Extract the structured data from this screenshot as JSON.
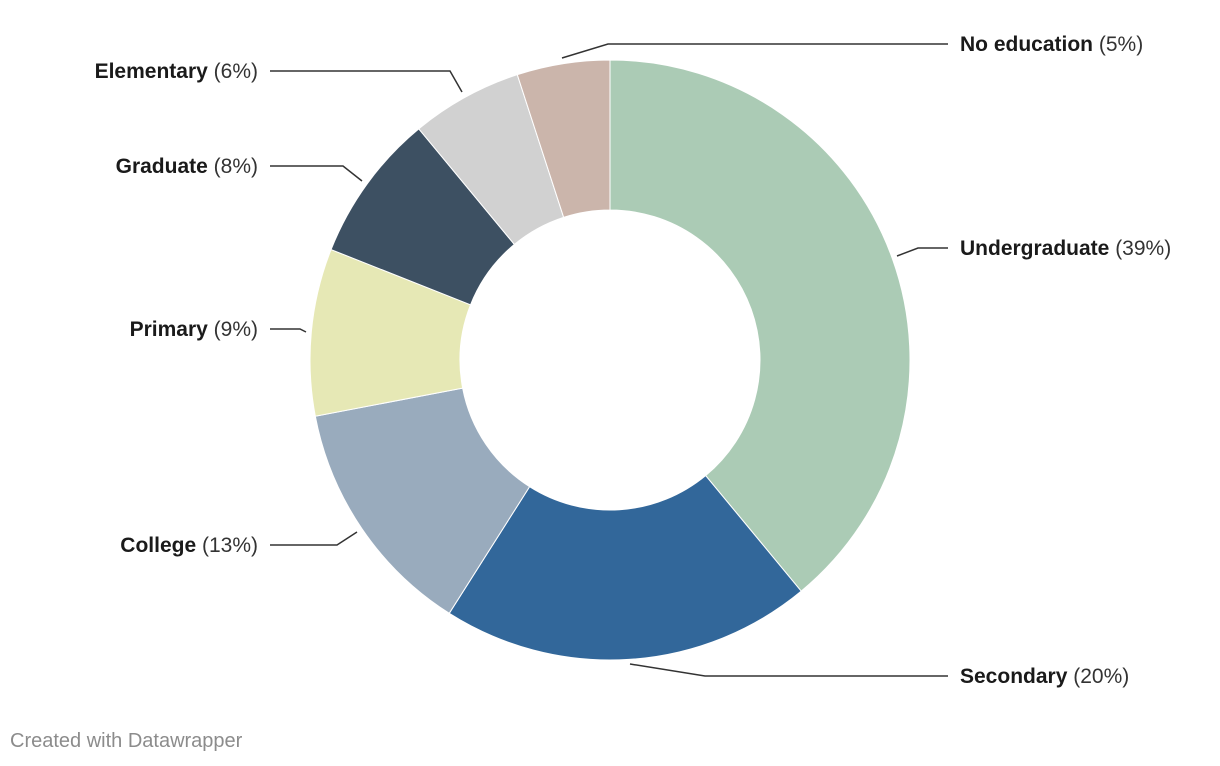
{
  "chart_data": {
    "type": "pie",
    "title": "",
    "style": "donut",
    "legend": "none",
    "slices": [
      {
        "label": "Undergraduate",
        "value": 39,
        "value_text": "(39%)",
        "color": "#abcbb5"
      },
      {
        "label": "Secondary",
        "value": 20,
        "value_text": "(20%)",
        "color": "#32679a"
      },
      {
        "label": "College",
        "value": 13,
        "value_text": "(13%)",
        "color": "#99abbd"
      },
      {
        "label": "Primary",
        "value": 9,
        "value_text": "(9%)",
        "color": "#e6e8b5"
      },
      {
        "label": "Graduate",
        "value": 8,
        "value_text": "(8%)",
        "color": "#3d5062"
      },
      {
        "label": "Elementary",
        "value": 6,
        "value_text": "(6%)",
        "color": "#d1d1d1"
      },
      {
        "label": "No education",
        "value": 5,
        "value_text": "(5%)",
        "color": "#cbb5ab"
      }
    ]
  },
  "footer": {
    "credit": "Created with Datawrapper"
  }
}
